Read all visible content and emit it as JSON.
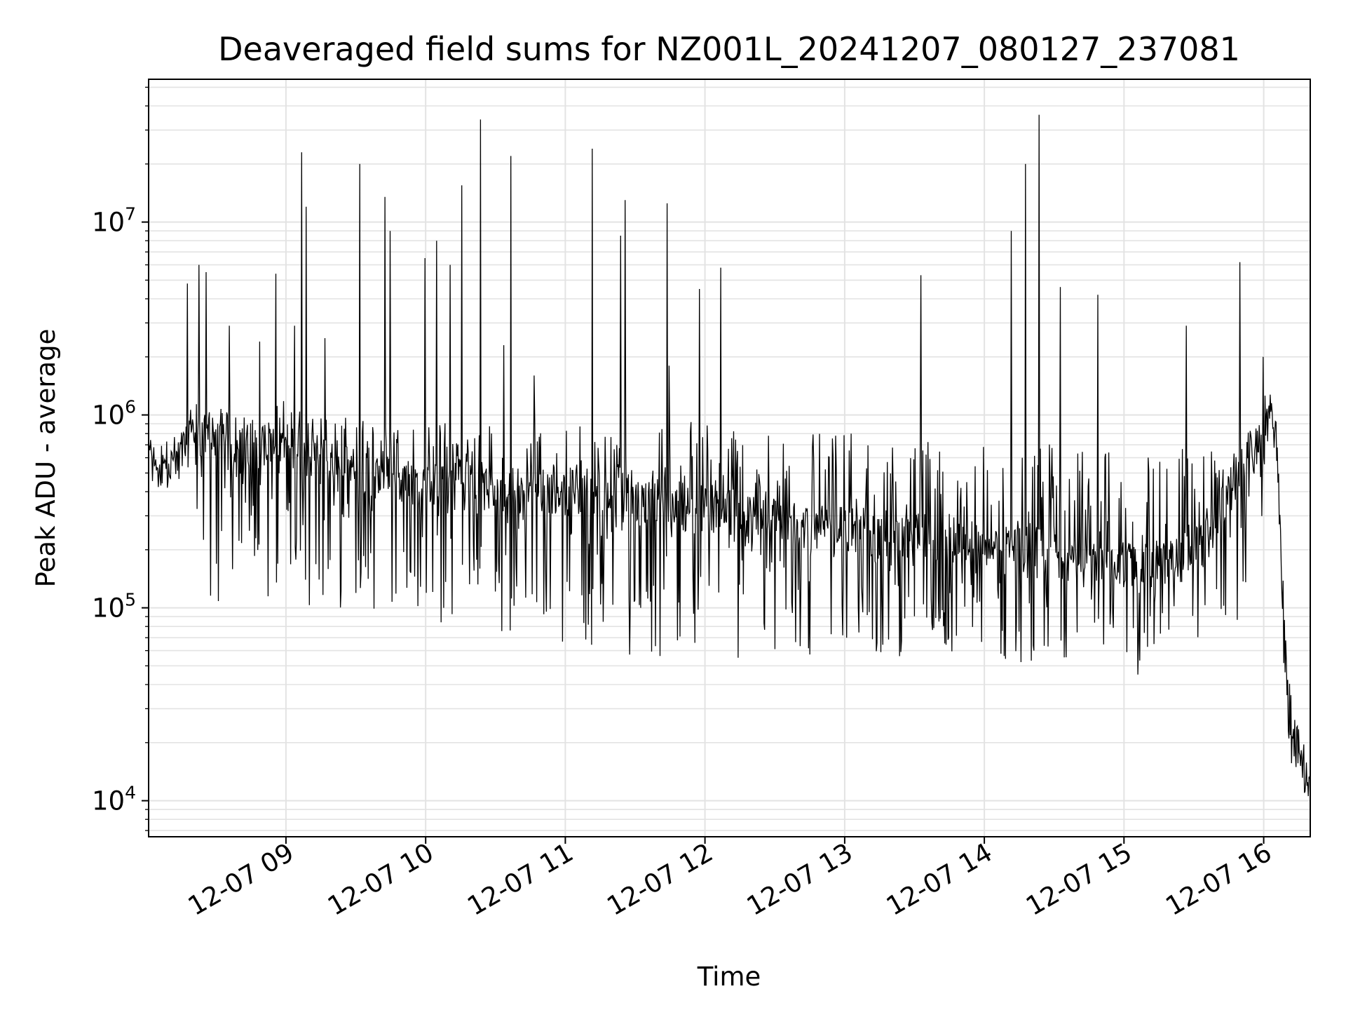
{
  "chart_data": {
    "type": "line",
    "title": "Deaveraged field sums for NZ001L_20241207_080127_237081",
    "xlabel": "Time",
    "ylabel": "Peak ADU - average",
    "yscale": "log",
    "ylim": [
      6500,
      55000000
    ],
    "xlim": [
      "2024-12-07 08:01",
      "2024-12-07 16:20"
    ],
    "grid": true,
    "x_ticks": [
      {
        "value": "2024-12-07 09:00",
        "label": "12-07 09"
      },
      {
        "value": "2024-12-07 10:00",
        "label": "12-07 10"
      },
      {
        "value": "2024-12-07 11:00",
        "label": "12-07 11"
      },
      {
        "value": "2024-12-07 12:00",
        "label": "12-07 12"
      },
      {
        "value": "2024-12-07 13:00",
        "label": "12-07 13"
      },
      {
        "value": "2024-12-07 14:00",
        "label": "12-07 14"
      },
      {
        "value": "2024-12-07 15:00",
        "label": "12-07 15"
      },
      {
        "value": "2024-12-07 16:00",
        "label": "12-07 16"
      }
    ],
    "y_ticks": [
      {
        "value": 10000,
        "base": "10",
        "exp": "4"
      },
      {
        "value": 100000,
        "base": "10",
        "exp": "5"
      },
      {
        "value": 1000000,
        "base": "10",
        "exp": "6"
      },
      {
        "value": 10000000,
        "base": "10",
        "exp": "7"
      }
    ],
    "series": [
      {
        "color": "#000000",
        "x": [
          "2024-12-07 08:01",
          "2024-12-07 08:05",
          "2024-12-07 08:10",
          "2024-12-07 08:15",
          "2024-12-07 08:20",
          "2024-12-07 08:25",
          "2024-12-07 08:30",
          "2024-12-07 08:35",
          "2024-12-07 08:40",
          "2024-12-07 08:45",
          "2024-12-07 08:50",
          "2024-12-07 08:55",
          "2024-12-07 09:00",
          "2024-12-07 09:05",
          "2024-12-07 09:10",
          "2024-12-07 09:15",
          "2024-12-07 09:20",
          "2024-12-07 09:25",
          "2024-12-07 09:30",
          "2024-12-07 09:35",
          "2024-12-07 09:40",
          "2024-12-07 09:45",
          "2024-12-07 09:50",
          "2024-12-07 09:55",
          "2024-12-07 10:00",
          "2024-12-07 10:05",
          "2024-12-07 10:10",
          "2024-12-07 10:15",
          "2024-12-07 10:20",
          "2024-12-07 10:25",
          "2024-12-07 10:30",
          "2024-12-07 10:35",
          "2024-12-07 10:40",
          "2024-12-07 10:45",
          "2024-12-07 10:50",
          "2024-12-07 10:55",
          "2024-12-07 11:00",
          "2024-12-07 11:05",
          "2024-12-07 11:10",
          "2024-12-07 11:15",
          "2024-12-07 11:20",
          "2024-12-07 11:25",
          "2024-12-07 11:30",
          "2024-12-07 11:35",
          "2024-12-07 11:40",
          "2024-12-07 11:45",
          "2024-12-07 11:50",
          "2024-12-07 11:55",
          "2024-12-07 12:00",
          "2024-12-07 12:05",
          "2024-12-07 12:10",
          "2024-12-07 12:15",
          "2024-12-07 12:20",
          "2024-12-07 12:25",
          "2024-12-07 12:30",
          "2024-12-07 12:35",
          "2024-12-07 12:40",
          "2024-12-07 12:45",
          "2024-12-07 12:50",
          "2024-12-07 12:55",
          "2024-12-07 13:00",
          "2024-12-07 13:05",
          "2024-12-07 13:10",
          "2024-12-07 13:15",
          "2024-12-07 13:20",
          "2024-12-07 13:25",
          "2024-12-07 13:30",
          "2024-12-07 13:35",
          "2024-12-07 13:40",
          "2024-12-07 13:45",
          "2024-12-07 13:50",
          "2024-12-07 13:55",
          "2024-12-07 14:00",
          "2024-12-07 14:05",
          "2024-12-07 14:10",
          "2024-12-07 14:15",
          "2024-12-07 14:20",
          "2024-12-07 14:25",
          "2024-12-07 14:30",
          "2024-12-07 14:35",
          "2024-12-07 14:40",
          "2024-12-07 14:45",
          "2024-12-07 14:50",
          "2024-12-07 14:55",
          "2024-12-07 15:00",
          "2024-12-07 15:05",
          "2024-12-07 15:10",
          "2024-12-07 15:15",
          "2024-12-07 15:20",
          "2024-12-07 15:25",
          "2024-12-07 15:30",
          "2024-12-07 15:35",
          "2024-12-07 15:40",
          "2024-12-07 15:45",
          "2024-12-07 15:50",
          "2024-12-07 15:55",
          "2024-12-07 16:00",
          "2024-12-07 16:03",
          "2024-12-07 16:06",
          "2024-12-07 16:09",
          "2024-12-07 16:12",
          "2024-12-07 16:15",
          "2024-12-07 16:19"
        ],
        "baseline": [
          600000,
          550000,
          560000,
          620000,
          800000,
          750000,
          700000,
          650000,
          620000,
          680000,
          700000,
          720000,
          750000,
          650000,
          600000,
          600000,
          550000,
          550000,
          500000,
          500000,
          480000,
          470000,
          460000,
          450000,
          450000,
          440000,
          430000,
          420000,
          420000,
          410000,
          400000,
          400000,
          400000,
          410000,
          420000,
          410000,
          400000,
          390000,
          380000,
          380000,
          380000,
          370000,
          360000,
          360000,
          350000,
          350000,
          340000,
          330000,
          330000,
          320000,
          310000,
          300000,
          300000,
          300000,
          290000,
          280000,
          270000,
          260000,
          260000,
          260000,
          250000,
          250000,
          250000,
          240000,
          240000,
          230000,
          230000,
          230000,
          220000,
          220000,
          220000,
          210000,
          210000,
          200000,
          200000,
          200000,
          200000,
          190000,
          190000,
          180000,
          180000,
          170000,
          170000,
          170000,
          170000,
          160000,
          160000,
          160000,
          170000,
          180000,
          200000,
          220000,
          300000,
          400000,
          500000,
          600000,
          900000,
          1050000,
          600000,
          60000,
          25000,
          18000,
          13000
        ],
        "upper_envelope": [
          700000,
          620000,
          650000,
          750000,
          1200000,
          1300000,
          1100000,
          1050000,
          1000000,
          1000000,
          1050000,
          1100000,
          1300000,
          1100000,
          1000000,
          1050000,
          1000000,
          1000000,
          950000,
          950000,
          900000,
          900000,
          900000,
          900000,
          900000,
          950000,
          950000,
          900000,
          900000,
          900000,
          900000,
          1000000,
          900000,
          950000,
          1000000,
          950000,
          900000,
          900000,
          900000,
          900000,
          900000,
          900000,
          900000,
          950000,
          900000,
          850000,
          950000,
          1000000,
          950000,
          900000,
          900000,
          850000,
          850000,
          850000,
          800000,
          800000,
          800000,
          800000,
          800000,
          800000,
          800000,
          800000,
          800000,
          750000,
          800000,
          800000,
          750000,
          750000,
          750000,
          700000,
          700000,
          700000,
          800000,
          750000,
          700000,
          700000,
          700000,
          700000,
          750000,
          700000,
          650000,
          650000,
          700000,
          650000,
          650000,
          650000,
          700000,
          700000,
          700000,
          700000,
          700000,
          650000,
          650000,
          700000,
          750000,
          850000,
          1300000,
          1150000,
          700000,
          90000,
          45000,
          25000,
          15000
        ],
        "lower_envelope": [
          450000,
          400000,
          400000,
          350000,
          300000,
          120000,
          100000,
          110000,
          100000,
          95000,
          80000,
          110000,
          150000,
          120000,
          100000,
          90000,
          95000,
          100000,
          110000,
          100000,
          95000,
          90000,
          85000,
          70000,
          70000,
          75000,
          80000,
          75000,
          70000,
          80000,
          75000,
          65000,
          70000,
          65000,
          70000,
          65000,
          60000,
          60000,
          60000,
          60000,
          55000,
          55000,
          58000,
          55000,
          55000,
          55000,
          55000,
          55000,
          55000,
          52000,
          52000,
          50000,
          52000,
          52000,
          52000,
          55000,
          55000,
          55000,
          52000,
          52000,
          55000,
          60000,
          60000,
          55000,
          58000,
          55000,
          55000,
          55000,
          55000,
          55000,
          55000,
          55000,
          55000,
          52000,
          50000,
          52000,
          52000,
          52000,
          55000,
          55000,
          55000,
          55000,
          60000,
          55000,
          45000,
          40000,
          50000,
          50000,
          52000,
          55000,
          55000,
          55000,
          58000,
          60000,
          70000,
          200000,
          300000,
          550000,
          400000,
          30000,
          15000,
          12000,
          10000
        ],
        "spikes": [
          {
            "x": "2024-12-07 08:18",
            "y": 4800000
          },
          {
            "x": "2024-12-07 08:23",
            "y": 6000000
          },
          {
            "x": "2024-12-07 08:26",
            "y": 5500000
          },
          {
            "x": "2024-12-07 08:36",
            "y": 2900000
          },
          {
            "x": "2024-12-07 08:49",
            "y": 2400000
          },
          {
            "x": "2024-12-07 08:56",
            "y": 5400000
          },
          {
            "x": "2024-12-07 09:04",
            "y": 2900000
          },
          {
            "x": "2024-12-07 09:07",
            "y": 23000000
          },
          {
            "x": "2024-12-07 09:09",
            "y": 12000000
          },
          {
            "x": "2024-12-07 09:17",
            "y": 2500000
          },
          {
            "x": "2024-12-07 09:32",
            "y": 20000000
          },
          {
            "x": "2024-12-07 09:43",
            "y": 13500000
          },
          {
            "x": "2024-12-07 09:45",
            "y": 9000000
          },
          {
            "x": "2024-12-07 10:00",
            "y": 6500000
          },
          {
            "x": "2024-12-07 10:05",
            "y": 8000000
          },
          {
            "x": "2024-12-07 10:11",
            "y": 6000000
          },
          {
            "x": "2024-12-07 10:16",
            "y": 15500000
          },
          {
            "x": "2024-12-07 10:24",
            "y": 34000000
          },
          {
            "x": "2024-12-07 10:34",
            "y": 2300000
          },
          {
            "x": "2024-12-07 10:37",
            "y": 22000000
          },
          {
            "x": "2024-12-07 10:47",
            "y": 1600000
          },
          {
            "x": "2024-12-07 11:12",
            "y": 24000000
          },
          {
            "x": "2024-12-07 11:24",
            "y": 8500000
          },
          {
            "x": "2024-12-07 11:26",
            "y": 13000000
          },
          {
            "x": "2024-12-07 11:44",
            "y": 12500000
          },
          {
            "x": "2024-12-07 11:45",
            "y": 1800000
          },
          {
            "x": "2024-12-07 11:58",
            "y": 4500000
          },
          {
            "x": "2024-12-07 12:07",
            "y": 5800000
          },
          {
            "x": "2024-12-07 13:33",
            "y": 5300000
          },
          {
            "x": "2024-12-07 14:12",
            "y": 9000000
          },
          {
            "x": "2024-12-07 14:18",
            "y": 20000000
          },
          {
            "x": "2024-12-07 14:24",
            "y": 36000000
          },
          {
            "x": "2024-12-07 14:33",
            "y": 4600000
          },
          {
            "x": "2024-12-07 14:49",
            "y": 4200000
          },
          {
            "x": "2024-12-07 15:27",
            "y": 2900000
          },
          {
            "x": "2024-12-07 15:50",
            "y": 6200000
          },
          {
            "x": "2024-12-07 16:00",
            "y": 2000000
          }
        ]
      }
    ]
  }
}
